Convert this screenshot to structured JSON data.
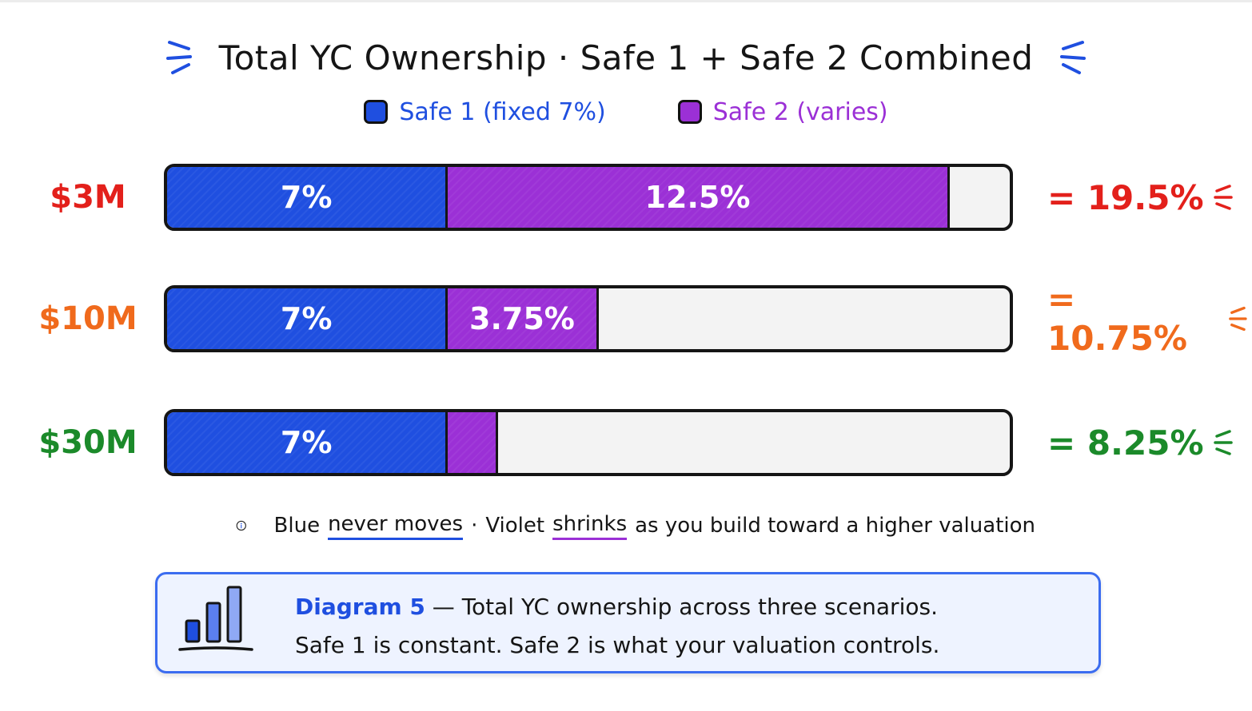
{
  "chart_data": {
    "type": "bar",
    "stacked": true,
    "orientation": "horizontal",
    "title": "Total YC Ownership · Safe 1 + Safe 2 Combined",
    "categories": [
      "$3M",
      "$10M",
      "$30M"
    ],
    "series": [
      {
        "name": "Safe 1 (fixed 7%)",
        "values": [
          7,
          7,
          7
        ],
        "labels": [
          "7%",
          "7%",
          "7%"
        ],
        "color": "#1f4fe0"
      },
      {
        "name": "Safe 2 (varies)",
        "values": [
          12.5,
          3.75,
          1.25
        ],
        "labels": [
          "12.5%",
          "3.75%",
          ""
        ],
        "color": "#9b30d6"
      }
    ],
    "totals": [
      "= 19.5%",
      "= 10.75%",
      "= 8.25%"
    ],
    "category_colors": [
      "#e3201b",
      "#f06a1c",
      "#1b8a2a"
    ],
    "xlim": [
      0,
      21
    ],
    "legend_position": "top-center",
    "grid": false
  },
  "note": {
    "part1": "Blue",
    "part2": "never moves",
    "part3": "·",
    "part4": "Violet",
    "part5": "shrinks",
    "part6": "as you build toward a higher valuation",
    "icon": "info-icon"
  },
  "caption": {
    "label": "Diagram 5",
    "line1_rest": " — Total YC ownership across three scenarios.",
    "line2": "Safe 1 is constant. Safe 2 is what your valuation controls.",
    "icon": "bar-chart-icon"
  },
  "colors": {
    "safe1": "#1f4fe0",
    "safe2": "#9b30d6",
    "title_spark": "#1f4fe0",
    "caption_border": "#3b6cf0",
    "caption_bg": "#eef3ff"
  }
}
